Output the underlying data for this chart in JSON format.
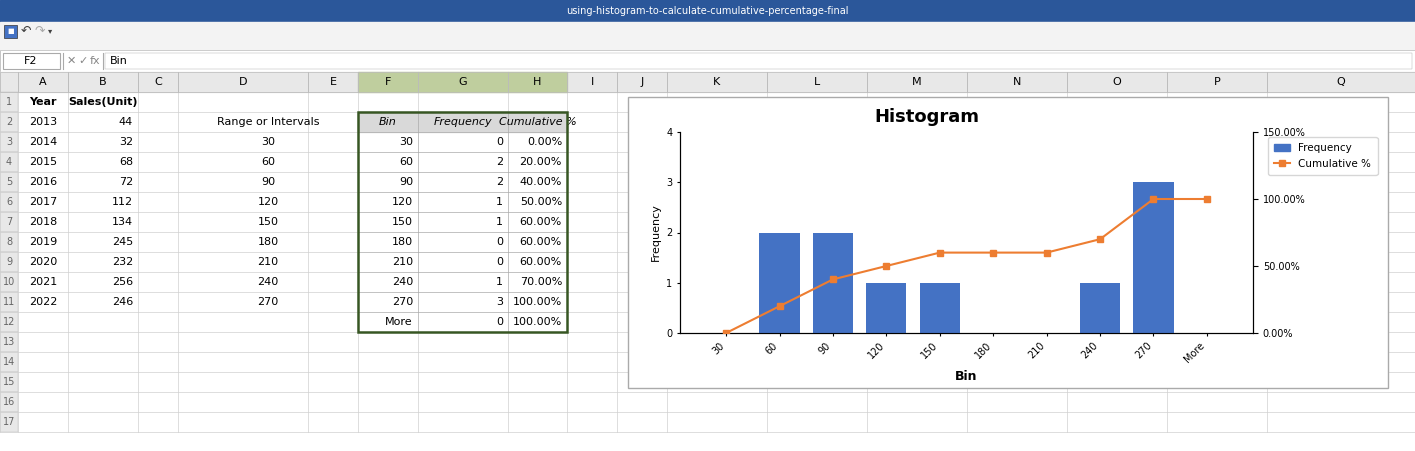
{
  "years": [
    2013,
    2014,
    2015,
    2016,
    2017,
    2018,
    2019,
    2020,
    2021,
    2022
  ],
  "sales": [
    44,
    32,
    68,
    72,
    112,
    134,
    245,
    232,
    256,
    246
  ],
  "intervals": [
    30,
    60,
    90,
    120,
    150,
    180,
    210,
    240,
    270
  ],
  "bins": [
    "30",
    "60",
    "90",
    "120",
    "150",
    "180",
    "210",
    "240",
    "270",
    "More"
  ],
  "frequency": [
    0,
    2,
    2,
    1,
    1,
    0,
    0,
    1,
    3,
    0
  ],
  "cumulative_pct": [
    "0.00%",
    "20.00%",
    "40.00%",
    "50.00%",
    "60.00%",
    "60.00%",
    "60.00%",
    "70.00%",
    "100.00%",
    "100.00%"
  ],
  "cumulative_vals": [
    0.0,
    20.0,
    40.0,
    50.0,
    60.0,
    60.0,
    60.0,
    70.0,
    100.0,
    100.0
  ],
  "bar_color": "#4472C4",
  "line_color": "#ED7D31",
  "chart_title": "Histogram",
  "xlabel": "Bin",
  "ylabel_left": "Frequency",
  "left_ylim": [
    0,
    4
  ],
  "right_ylim": [
    0,
    150
  ],
  "right_yticks": [
    0,
    50,
    100,
    150
  ],
  "right_yticklabels": [
    "0.00%",
    "50.00%",
    "100.00%",
    "150.00%"
  ],
  "left_yticks": [
    0,
    1,
    2,
    3,
    4
  ],
  "col_header_bg": "#E8E8E8",
  "col_header_sel": "#BFCE9E",
  "row_num_bg": "#E8E8E8",
  "grid_line": "#D0D0D0",
  "table_header_bg": "#D9D9D9",
  "titlebar_color": "#2B579A",
  "toolbar_color": "#F3F3F3",
  "formulabar_color": "#FFFFFF"
}
